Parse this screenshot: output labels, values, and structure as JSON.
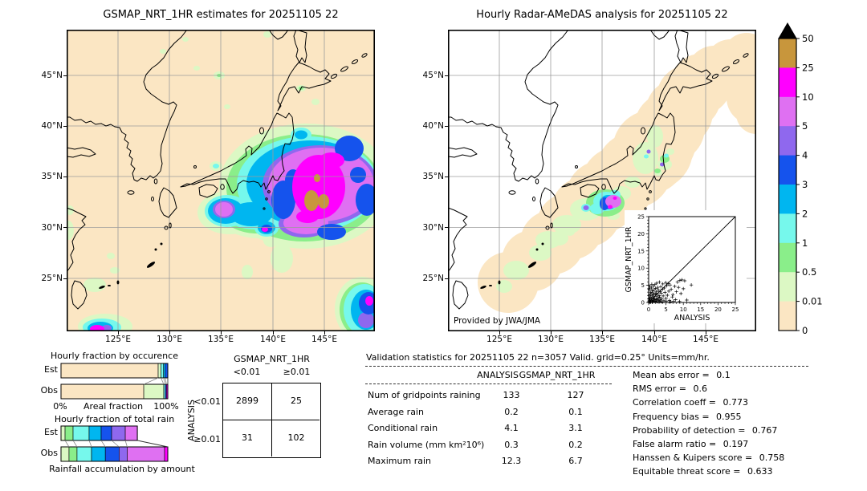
{
  "figure": {
    "left_map": {
      "title": "GSMAP_NRT_1HR estimates for 20251105 22"
    },
    "right_map": {
      "title": "Hourly Radar-AMeDAS analysis for 20251105 22",
      "credit": "Provided by JWA/JMA"
    },
    "lat_labels": [
      "45°N",
      "40°N",
      "35°N",
      "30°N",
      "25°N"
    ],
    "lon_labels": [
      "125°E",
      "130°E",
      "135°E",
      "140°E",
      "145°E"
    ]
  },
  "colorbar": {
    "units": "mm/hr",
    "tick_labels": [
      "50",
      "25",
      "10",
      "5",
      "4",
      "3",
      "2",
      "1",
      "0.5",
      "0.01",
      "0"
    ],
    "colors_top_to_bottom": [
      "#c8963c",
      "#ff00ff",
      "#df70f2",
      "#8f68ee",
      "#1553ed",
      "#00b6f0",
      "#76f8ec",
      "#8aee8a",
      "#dcf8c4",
      "#fbe6c3"
    ],
    "overflow_color": "#000000"
  },
  "chart_data": [
    {
      "id": "occurrence_fraction",
      "type": "bar",
      "title": "Hourly fraction by occurence",
      "xlabel": "Areal fraction",
      "x_tick_labels": [
        "0%",
        "100%"
      ],
      "categories": [
        "Est",
        "Obs"
      ],
      "series": [
        {
          "name": "Est",
          "segments": [
            {
              "bin": "<0.01",
              "color": "#fbe6c3",
              "pct": 91.0
            },
            {
              "bin": "0.01-0.5",
              "color": "#dcf8c4",
              "pct": 2.6
            },
            {
              "bin": "1-2",
              "color": "#76f8ec",
              "pct": 2.4
            },
            {
              "bin": "2-3",
              "color": "#00b6f0",
              "pct": 1.6
            },
            {
              "bin": "3-4",
              "color": "#1553ed",
              "pct": 2.4
            }
          ]
        },
        {
          "name": "Obs",
          "segments": [
            {
              "bin": "<0.01",
              "color": "#fbe6c3",
              "pct": 77.5
            },
            {
              "bin": "0.01-0.5",
              "color": "#dcf8c4",
              "pct": 18.7
            },
            {
              "bin": "1-2",
              "color": "#76f8ec",
              "pct": 1.5
            },
            {
              "bin": "3-4",
              "color": "#1553ed",
              "pct": 1.1
            },
            {
              "bin": "10-25",
              "color": "#ff00ff",
              "pct": 1.2
            }
          ]
        }
      ]
    },
    {
      "id": "total_rain_fraction",
      "type": "bar",
      "title": "Hourly fraction of total rain",
      "caption": "Rainfall accumulation by amount",
      "categories": [
        "Est",
        "Obs"
      ],
      "series": [
        {
          "name": "Est",
          "segments": [
            {
              "bin": "0.01-0.5",
              "color": "#dcf8c4",
              "pct": 3.8
            },
            {
              "bin": "0.5-1",
              "color": "#8aee8a",
              "pct": 7.5
            },
            {
              "bin": "1-2",
              "color": "#76f8ec",
              "pct": 15.0
            },
            {
              "bin": "2-3",
              "color": "#00b6f0",
              "pct": 11.3
            },
            {
              "bin": "3-4",
              "color": "#1553ed",
              "pct": 9.8
            },
            {
              "bin": "4-5",
              "color": "#8f68ee",
              "pct": 12.8
            },
            {
              "bin": "5-10",
              "color": "#df70f2",
              "pct": 11.3
            }
          ]
        },
        {
          "name": "Obs",
          "segments": [
            {
              "bin": "0.01-0.5",
              "color": "#dcf8c4",
              "pct": 7.5
            },
            {
              "bin": "0.5-1",
              "color": "#8aee8a",
              "pct": 7.5
            },
            {
              "bin": "1-2",
              "color": "#76f8ec",
              "pct": 13.6
            },
            {
              "bin": "2-3",
              "color": "#00b6f0",
              "pct": 12.9
            },
            {
              "bin": "3-4",
              "color": "#1553ed",
              "pct": 12.9
            },
            {
              "bin": "4-5",
              "color": "#8f68ee",
              "pct": 7.6
            },
            {
              "bin": "5-10",
              "color": "#df70f2",
              "pct": 35.0
            },
            {
              "bin": "10-25",
              "color": "#ff00ff",
              "pct": 3.0
            }
          ]
        }
      ]
    },
    {
      "id": "contingency_table",
      "type": "table",
      "col_header": "GSMAP_NRT_1HR",
      "row_header": "ANALYSIS",
      "col_labels": [
        "<0.01",
        "≥0.01"
      ],
      "row_labels": [
        "<0.01",
        "≥0.01"
      ],
      "values": [
        [
          "2899",
          "25"
        ],
        [
          "31",
          "102"
        ]
      ]
    },
    {
      "id": "validation_table",
      "type": "table",
      "title": "Validation statistics for 20251105 22  n=3057 Valid. grid=0.25° Units=mm/hr.",
      "columns": [
        "ANALYSIS",
        "GSMAP_NRT_1HR"
      ],
      "rows": [
        {
          "label": "Num of gridpoints raining",
          "values": [
            "133",
            "127"
          ]
        },
        {
          "label": "Average rain",
          "values": [
            "0.2",
            "0.1"
          ]
        },
        {
          "label": "Conditional rain",
          "values": [
            "4.1",
            "3.1"
          ]
        },
        {
          "label": "Rain volume (mm km²10⁶)",
          "values": [
            "0.3",
            "0.2"
          ]
        },
        {
          "label": "Maximum rain",
          "values": [
            "12.3",
            "6.7"
          ]
        }
      ]
    },
    {
      "id": "skill_scores",
      "type": "table",
      "rows": [
        {
          "label": "Mean abs error",
          "value": "0.1"
        },
        {
          "label": "RMS error",
          "value": "0.6"
        },
        {
          "label": "Correlation coeff",
          "value": "0.773"
        },
        {
          "label": "Frequency bias",
          "value": "0.955"
        },
        {
          "label": "Probability of detection",
          "value": "0.767"
        },
        {
          "label": "False alarm ratio",
          "value": "0.197"
        },
        {
          "label": "Hanssen & Kuipers score",
          "value": "0.758"
        },
        {
          "label": "Equitable threat score",
          "value": "0.633"
        }
      ]
    },
    {
      "id": "inset_scatter",
      "type": "scatter",
      "xlabel": "ANALYSIS",
      "ylabel": "GSMAP_NRT_1HR",
      "xlim": [
        0,
        25
      ],
      "ylim": [
        0,
        25
      ],
      "tick_labels": [
        "0",
        "5",
        "10",
        "15",
        "20",
        "25"
      ],
      "points": [
        [
          0.1,
          0.2
        ],
        [
          0.2,
          0.5
        ],
        [
          0.3,
          1.2
        ],
        [
          0.2,
          2.1
        ],
        [
          0.4,
          0.8
        ],
        [
          0.5,
          1.6
        ],
        [
          0.5,
          3.0
        ],
        [
          0.6,
          0.3
        ],
        [
          0.7,
          2.4
        ],
        [
          0.8,
          1.1
        ],
        [
          0.8,
          4.2
        ],
        [
          0.9,
          0.6
        ],
        [
          1.0,
          1.9
        ],
        [
          1.0,
          3.4
        ],
        [
          1.1,
          0.2
        ],
        [
          1.2,
          2.8
        ],
        [
          1.3,
          1.4
        ],
        [
          1.4,
          4.8
        ],
        [
          1.5,
          0.9
        ],
        [
          1.5,
          2.2
        ],
        [
          1.6,
          3.7
        ],
        [
          1.7,
          1.1
        ],
        [
          1.8,
          5.2
        ],
        [
          1.9,
          2.6
        ],
        [
          2.0,
          0.4
        ],
        [
          2.0,
          4.1
        ],
        [
          2.1,
          1.8
        ],
        [
          2.2,
          3.1
        ],
        [
          2.3,
          5.6
        ],
        [
          2.4,
          0.9
        ],
        [
          2.5,
          2.4
        ],
        [
          2.6,
          4.4
        ],
        [
          2.7,
          1.3
        ],
        [
          2.8,
          3.6
        ],
        [
          2.9,
          0.6
        ],
        [
          3.0,
          2.0
        ],
        [
          3.1,
          5.9
        ],
        [
          3.2,
          1.5
        ],
        [
          3.3,
          3.2
        ],
        [
          3.4,
          0.8
        ],
        [
          3.5,
          4.6
        ],
        [
          3.6,
          2.7
        ],
        [
          3.8,
          1.0
        ],
        [
          4.0,
          3.9
        ],
        [
          4.1,
          5.4
        ],
        [
          4.2,
          1.9
        ],
        [
          4.4,
          0.5
        ],
        [
          4.5,
          4.2
        ],
        [
          4.7,
          2.9
        ],
        [
          4.9,
          5.8
        ],
        [
          5.0,
          1.2
        ],
        [
          5.2,
          4.9
        ],
        [
          5.4,
          2.1
        ],
        [
          5.6,
          5.5
        ],
        [
          5.8,
          3.3
        ],
        [
          6.0,
          0.6
        ],
        [
          6.2,
          5.1
        ],
        [
          6.5,
          3.8
        ],
        [
          6.8,
          1.6
        ],
        [
          7.0,
          2.3
        ],
        [
          7.2,
          0.4
        ],
        [
          7.5,
          4.7
        ],
        [
          7.8,
          0.8
        ],
        [
          8.0,
          3.1
        ],
        [
          8.3,
          5.9
        ],
        [
          8.6,
          4.4
        ],
        [
          9.0,
          6.4
        ],
        [
          9.3,
          2.6
        ],
        [
          9.6,
          6.6
        ],
        [
          10.0,
          4.0
        ],
        [
          10.4,
          6.3
        ],
        [
          11.0,
          0.7
        ],
        [
          12.3,
          5.1
        ],
        [
          0.3,
          0.1
        ],
        [
          0.6,
          0.1
        ],
        [
          1.1,
          0.1
        ],
        [
          1.7,
          0.3
        ],
        [
          2.4,
          0.2
        ],
        [
          3.1,
          0.3
        ],
        [
          0.1,
          1.0
        ],
        [
          0.2,
          3.8
        ],
        [
          0.1,
          5.0
        ],
        [
          0.4,
          4.5
        ],
        [
          0.9,
          5.3
        ],
        [
          0.2,
          0.1
        ],
        [
          0.5,
          0.2
        ],
        [
          1.3,
          0.5
        ],
        [
          2.2,
          0.7
        ],
        [
          3.7,
          0.2
        ],
        [
          5.1,
          0.3
        ],
        [
          6.3,
          0.2
        ],
        [
          8.9,
          0.3
        ]
      ]
    },
    {
      "id": "colorbar_scale",
      "type": "legend",
      "units": "mm/hr",
      "levels": [
        0,
        0.01,
        0.5,
        1,
        2,
        3,
        4,
        5,
        10,
        25,
        50
      ]
    }
  ]
}
